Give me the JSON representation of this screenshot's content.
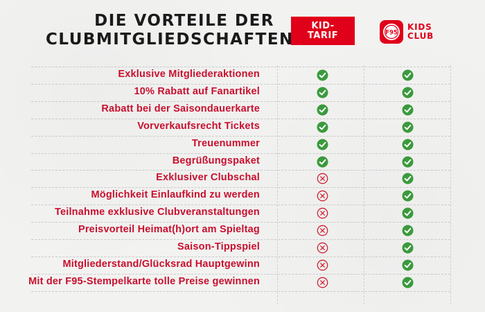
{
  "header": {
    "title_line1": "DIE VORTEILE DER",
    "title_line2": "CLUBMITGLIEDSCHAFTEN"
  },
  "columns": {
    "kid_tarif": {
      "line1": "KID-",
      "line2": "TARIF"
    },
    "kids_club": {
      "line1": "KIDS",
      "line2": "CLUB",
      "crest_text": "F95"
    }
  },
  "colors": {
    "accent": "#e1001a",
    "label": "#c8102e",
    "check": "#3a9a3c",
    "cross": "#d0202e"
  },
  "rows": [
    {
      "label": "Exklusive Mitgliederaktionen",
      "kid_tarif": "check",
      "kids_club": "check"
    },
    {
      "label": "10% Rabatt auf Fanartikel",
      "kid_tarif": "check",
      "kids_club": "check"
    },
    {
      "label": "Rabatt bei der Saisondauerkarte",
      "kid_tarif": "check",
      "kids_club": "check"
    },
    {
      "label": "Vorverkaufsrecht Tickets",
      "kid_tarif": "check",
      "kids_club": "check"
    },
    {
      "label": "Treuenummer",
      "kid_tarif": "check",
      "kids_club": "check"
    },
    {
      "label": "Begrüßungspaket",
      "kid_tarif": "check",
      "kids_club": "check"
    },
    {
      "label": "Exklusiver Clubschal",
      "kid_tarif": "cross",
      "kids_club": "check"
    },
    {
      "label": "Möglichkeit Einlaufkind zu werden",
      "kid_tarif": "cross",
      "kids_club": "check"
    },
    {
      "label": "Teilnahme exklusive Clubveranstaltungen",
      "kid_tarif": "cross",
      "kids_club": "check"
    },
    {
      "label": "Preisvorteil Heimat(h)ort am Spieltag",
      "kid_tarif": "cross",
      "kids_club": "check"
    },
    {
      "label": "Saison-Tippspiel",
      "kid_tarif": "cross",
      "kids_club": "check"
    },
    {
      "label": "Mitgliederstand/Glücksrad Hauptgewinn",
      "kid_tarif": "cross",
      "kids_club": "check"
    },
    {
      "label": "Mit der F95-Stempelkarte tolle Preise gewinnen",
      "kid_tarif": "cross",
      "kids_club": "check"
    }
  ]
}
